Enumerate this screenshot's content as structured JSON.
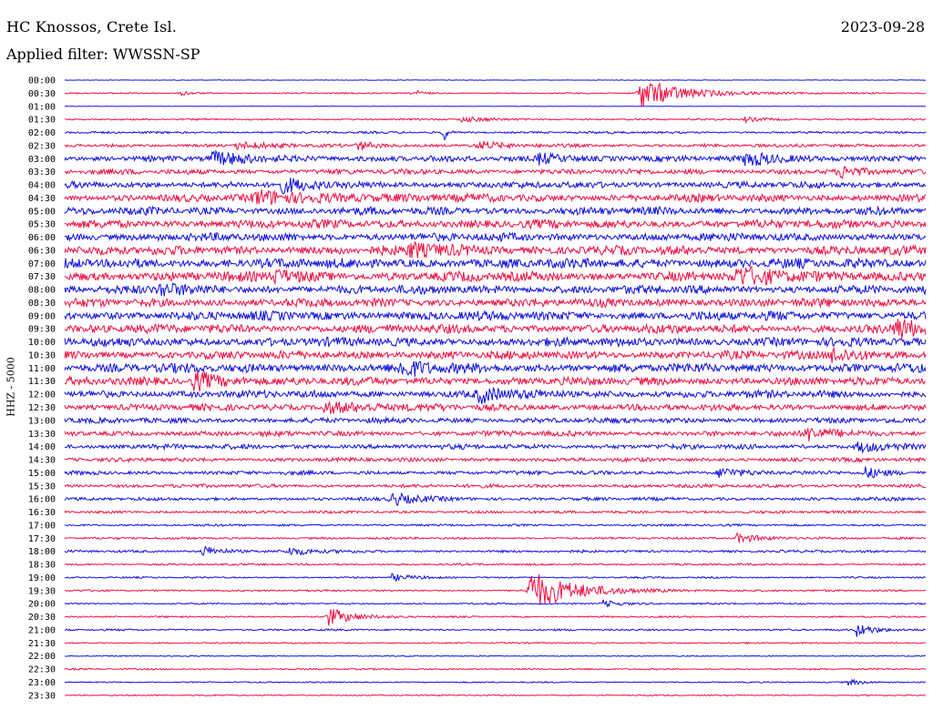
{
  "header": {
    "station": "HC Knossos, Crete Isl.",
    "date": "2023-09-28",
    "filter": "Applied filter: WWSSN-SP"
  },
  "chart_data": {
    "type": "line",
    "title": "HC Knossos, Crete Isl.",
    "ylabel": "HHZ - 5000",
    "grid": false,
    "colors": [
      "#1010e0",
      "#ee1144"
    ],
    "rows": [
      "00:00",
      "00:30",
      "01:00",
      "01:30",
      "02:00",
      "02:30",
      "03:00",
      "03:30",
      "04:00",
      "04:30",
      "05:00",
      "05:30",
      "06:00",
      "06:30",
      "07:00",
      "07:30",
      "08:00",
      "08:30",
      "09:00",
      "09:30",
      "10:00",
      "10:30",
      "11:00",
      "11:30",
      "12:00",
      "12:30",
      "13:00",
      "13:30",
      "14:00",
      "14:30",
      "15:00",
      "15:30",
      "16:00",
      "16:30",
      "17:00",
      "17:30",
      "18:00",
      "18:30",
      "19:00",
      "19:30",
      "20:00",
      "20:30",
      "21:00",
      "21:30",
      "22:00",
      "22:30",
      "23:00",
      "23:30"
    ],
    "noise": [
      0.3,
      0.8,
      0.3,
      1.0,
      1.3,
      2.0,
      3.5,
      3.2,
      4.0,
      4.5,
      4.8,
      5.2,
      5.0,
      5.6,
      6.0,
      6.0,
      5.2,
      5.2,
      5.6,
      5.4,
      5.4,
      5.0,
      5.6,
      5.0,
      4.6,
      4.0,
      3.2,
      3.2,
      3.0,
      2.4,
      2.4,
      2.2,
      2.0,
      1.6,
      1.3,
      1.3,
      1.5,
      1.2,
      1.0,
      1.1,
      1.0,
      1.0,
      1.1,
      0.9,
      0.6,
      0.9,
      0.8,
      0.8
    ],
    "events": [
      {
        "row": 1,
        "t": 0.667,
        "amp": 16,
        "dur": 0.05
      },
      {
        "row": 1,
        "t": 0.135,
        "amp": 3,
        "dur": 0.01
      },
      {
        "row": 1,
        "t": 0.405,
        "amp": 4,
        "dur": 0.008
      },
      {
        "row": 3,
        "t": 0.46,
        "amp": 3,
        "dur": 0.03
      },
      {
        "row": 3,
        "t": 0.79,
        "amp": 3,
        "dur": 0.02
      },
      {
        "row": 4,
        "t": 0.44,
        "amp": 11,
        "dur": 0.004
      },
      {
        "row": 5,
        "t": 0.2,
        "amp": 4,
        "dur": 0.03
      },
      {
        "row": 5,
        "t": 0.34,
        "amp": 5,
        "dur": 0.02
      },
      {
        "row": 5,
        "t": 0.48,
        "amp": 4,
        "dur": 0.03
      },
      {
        "row": 6,
        "t": 0.17,
        "amp": 6,
        "dur": 0.05
      },
      {
        "row": 6,
        "t": 0.55,
        "amp": 6,
        "dur": 0.03
      },
      {
        "row": 6,
        "t": 0.79,
        "amp": 7,
        "dur": 0.04
      },
      {
        "row": 7,
        "t": 0.9,
        "amp": 6,
        "dur": 0.02
      },
      {
        "row": 8,
        "t": 0.25,
        "amp": 7,
        "dur": 0.03
      },
      {
        "row": 9,
        "t": 0.22,
        "amp": 6,
        "dur": 0.1
      },
      {
        "row": 13,
        "t": 0.4,
        "amp": 7,
        "dur": 0.04
      },
      {
        "row": 15,
        "t": 0.24,
        "amp": 8,
        "dur": 0.02
      },
      {
        "row": 15,
        "t": 0.78,
        "amp": 7,
        "dur": 0.06
      },
      {
        "row": 16,
        "t": 0.11,
        "amp": 8,
        "dur": 0.02
      },
      {
        "row": 19,
        "t": 0.965,
        "amp": 11,
        "dur": 0.03
      },
      {
        "row": 21,
        "t": 0.89,
        "amp": 8,
        "dur": 0.03
      },
      {
        "row": 22,
        "t": 0.39,
        "amp": 8,
        "dur": 0.03
      },
      {
        "row": 23,
        "t": 0.15,
        "amp": 10,
        "dur": 0.03
      },
      {
        "row": 24,
        "t": 0.48,
        "amp": 8,
        "dur": 0.03
      },
      {
        "row": 25,
        "t": 0.3,
        "amp": 6,
        "dur": 0.05
      },
      {
        "row": 27,
        "t": 0.86,
        "amp": 8,
        "dur": 0.03
      },
      {
        "row": 28,
        "t": 0.92,
        "amp": 6,
        "dur": 0.03
      },
      {
        "row": 30,
        "t": 0.93,
        "amp": 6,
        "dur": 0.02
      },
      {
        "row": 30,
        "t": 0.76,
        "amp": 6,
        "dur": 0.02
      },
      {
        "row": 32,
        "t": 0.38,
        "amp": 7,
        "dur": 0.03
      },
      {
        "row": 35,
        "t": 0.78,
        "amp": 5,
        "dur": 0.03
      },
      {
        "row": 36,
        "t": 0.16,
        "amp": 6,
        "dur": 0.02
      },
      {
        "row": 36,
        "t": 0.26,
        "amp": 4,
        "dur": 0.03
      },
      {
        "row": 38,
        "t": 0.38,
        "amp": 4,
        "dur": 0.02
      },
      {
        "row": 39,
        "t": 0.539,
        "amp": 22,
        "dur": 0.05
      },
      {
        "row": 40,
        "t": 0.625,
        "amp": 4,
        "dur": 0.02
      },
      {
        "row": 41,
        "t": 0.305,
        "amp": 11,
        "dur": 0.025
      },
      {
        "row": 42,
        "t": 0.92,
        "amp": 7,
        "dur": 0.02
      },
      {
        "row": 46,
        "t": 0.91,
        "amp": 3,
        "dur": 0.02
      }
    ]
  }
}
